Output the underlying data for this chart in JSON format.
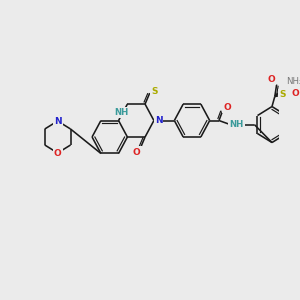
{
  "bg_color": "#ebebeb",
  "bond_color": "#1a1a1a",
  "atom_colors": {
    "N": "#2222cc",
    "O": "#dd2222",
    "S": "#aaaa00",
    "NH": "#3a9a9a",
    "C": "#1a1a1a"
  },
  "figsize": [
    3.0,
    3.0
  ],
  "dpi": 100,
  "lw": 1.15
}
